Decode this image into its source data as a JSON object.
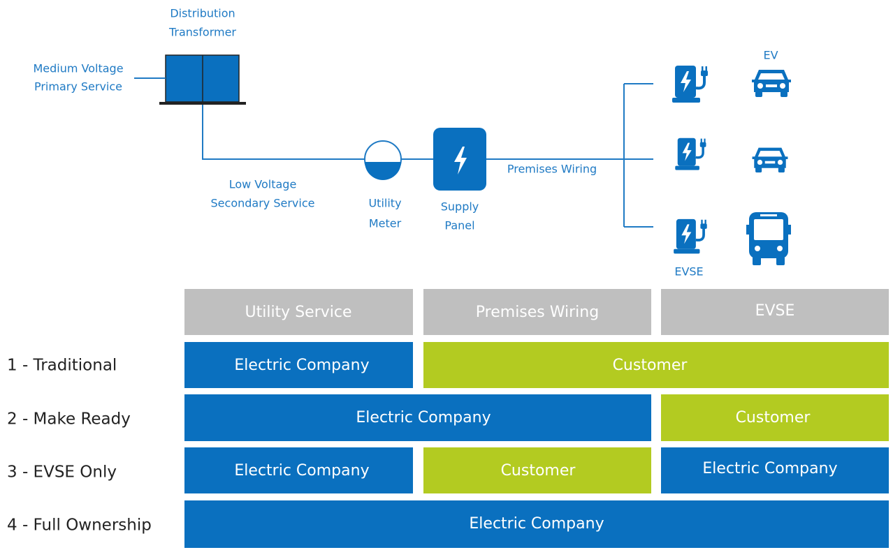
{
  "diagram": {
    "transformer_label": [
      "Distribution",
      "Transformer"
    ],
    "primary_label": [
      "Medium Voltage",
      "Primary Service"
    ],
    "secondary_label": [
      "Low Voltage",
      "Secondary Service"
    ],
    "meter_label": [
      "Utility",
      "Meter"
    ],
    "panel_label": [
      "Supply",
      "Panel"
    ],
    "wiring_label": "Premises Wiring",
    "ev_label": "EV",
    "evse_label": "EVSE"
  },
  "table": {
    "headers": [
      "Utility Service",
      "Premises Wiring",
      "EVSE"
    ],
    "rows": [
      {
        "label": "1 - Traditional",
        "segments": [
          "Electric Company",
          "Customer"
        ]
      },
      {
        "label": "2 - Make Ready",
        "segments": [
          "Electric Company",
          "Customer"
        ]
      },
      {
        "label": "3 - EVSE Only",
        "segments": [
          "Electric Company",
          "Customer",
          "Electric Company"
        ]
      },
      {
        "label": "4 - Full Ownership",
        "segments": [
          "Electric Company"
        ]
      }
    ]
  }
}
